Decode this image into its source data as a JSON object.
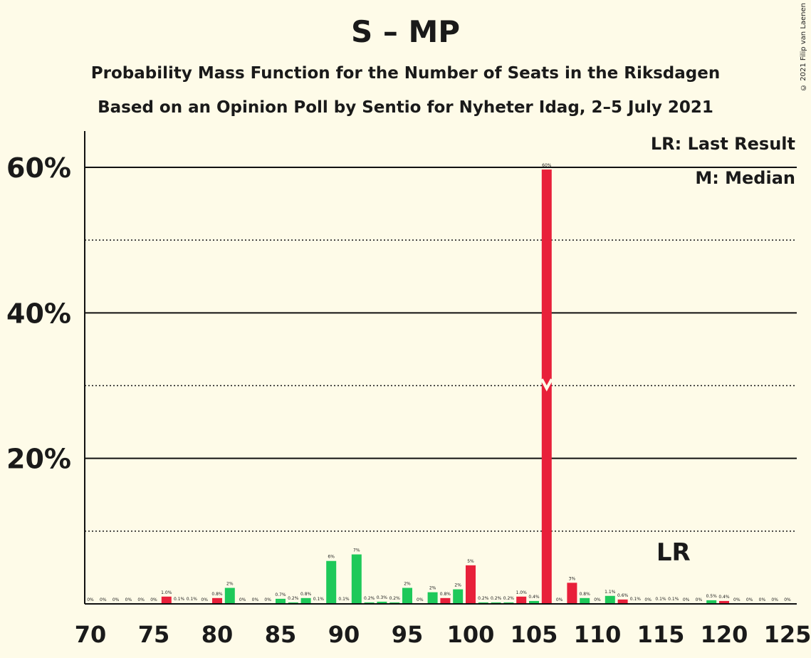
{
  "title": "S – MP",
  "subtitle1": "Probability Mass Function for the Number of Seats in the Riksdagen",
  "subtitle2": "Based on an Opinion Poll by Sentio for Nyheter Idag, 2–5 July 2021",
  "copyright": "© 2021 Filip van Laenen",
  "chart_data": {
    "type": "bar",
    "legend": [
      "LR: Last Result",
      "M: Median"
    ],
    "last_result_label": "LR",
    "last_result_seat": 116,
    "median_seat": 106,
    "ylim": [
      0,
      65
    ],
    "yticks": [
      {
        "value": 20,
        "label": "20%"
      },
      {
        "value": 40,
        "label": "40%"
      },
      {
        "value": 60,
        "label": "60%"
      }
    ],
    "dotted_gridlines": [
      10,
      30,
      50
    ],
    "xticks": [
      70,
      75,
      80,
      85,
      90,
      95,
      100,
      105,
      110,
      115,
      120,
      125
    ],
    "xlim": [
      70,
      125
    ],
    "colors": {
      "green": "#1ec95a",
      "red": "#e8203a",
      "background": "#fefbe8"
    },
    "bars": [
      {
        "seat": 70,
        "value": 0,
        "label": "0%",
        "color": "green"
      },
      {
        "seat": 71,
        "value": 0,
        "label": "0%",
        "color": "green"
      },
      {
        "seat": 72,
        "value": 0,
        "label": "0%",
        "color": "green"
      },
      {
        "seat": 73,
        "value": 0,
        "label": "0%",
        "color": "green"
      },
      {
        "seat": 74,
        "value": 0,
        "label": "0%",
        "color": "green"
      },
      {
        "seat": 75,
        "value": 0,
        "label": "0%",
        "color": "green"
      },
      {
        "seat": 76,
        "value": 1.0,
        "label": "1.0%",
        "color": "red"
      },
      {
        "seat": 77,
        "value": 0.1,
        "label": "0.1%",
        "color": "green"
      },
      {
        "seat": 78,
        "value": 0.1,
        "label": "0.1%",
        "color": "green"
      },
      {
        "seat": 79,
        "value": 0,
        "label": "0%",
        "color": "green"
      },
      {
        "seat": 80,
        "value": 0.8,
        "label": "0.8%",
        "color": "red"
      },
      {
        "seat": 81,
        "value": 2.2,
        "label": "2%",
        "color": "green"
      },
      {
        "seat": 82,
        "value": 0,
        "label": "0%",
        "color": "green"
      },
      {
        "seat": 83,
        "value": 0,
        "label": "0%",
        "color": "green"
      },
      {
        "seat": 84,
        "value": 0,
        "label": "0%",
        "color": "green"
      },
      {
        "seat": 85,
        "value": 0.7,
        "label": "0.7%",
        "color": "green"
      },
      {
        "seat": 86,
        "value": 0.2,
        "label": "0.2%",
        "color": "green"
      },
      {
        "seat": 87,
        "value": 0.8,
        "label": "0.8%",
        "color": "green"
      },
      {
        "seat": 88,
        "value": 0.1,
        "label": "0.1%",
        "color": "green"
      },
      {
        "seat": 89,
        "value": 5.9,
        "label": "6%",
        "color": "green"
      },
      {
        "seat": 90,
        "value": 0.1,
        "label": "0.1%",
        "color": "green"
      },
      {
        "seat": 91,
        "value": 6.8,
        "label": "7%",
        "color": "green"
      },
      {
        "seat": 92,
        "value": 0.2,
        "label": "0.2%",
        "color": "green"
      },
      {
        "seat": 93,
        "value": 0.3,
        "label": "0.3%",
        "color": "green"
      },
      {
        "seat": 94,
        "value": 0.2,
        "label": "0.2%",
        "color": "green"
      },
      {
        "seat": 95,
        "value": 2.2,
        "label": "2%",
        "color": "green"
      },
      {
        "seat": 96,
        "value": 0,
        "label": "0%",
        "color": "green"
      },
      {
        "seat": 97,
        "value": 1.6,
        "label": "2%",
        "color": "green"
      },
      {
        "seat": 98,
        "value": 0.8,
        "label": "0.8%",
        "color": "red"
      },
      {
        "seat": 99,
        "value": 2.0,
        "label": "2%",
        "color": "green"
      },
      {
        "seat": 100,
        "value": 5.3,
        "label": "5%",
        "color": "red"
      },
      {
        "seat": 101,
        "value": 0.2,
        "label": "0.2%",
        "color": "green"
      },
      {
        "seat": 102,
        "value": 0.2,
        "label": "0.2%",
        "color": "green"
      },
      {
        "seat": 103,
        "value": 0.2,
        "label": "0.2%",
        "color": "green"
      },
      {
        "seat": 104,
        "value": 1.0,
        "label": "1.0%",
        "color": "red"
      },
      {
        "seat": 105,
        "value": 0.4,
        "label": "0.4%",
        "color": "green"
      },
      {
        "seat": 106,
        "value": 59.7,
        "label": "60%",
        "color": "red"
      },
      {
        "seat": 107,
        "value": 0,
        "label": "0%",
        "color": "green"
      },
      {
        "seat": 108,
        "value": 2.9,
        "label": "3%",
        "color": "red"
      },
      {
        "seat": 109,
        "value": 0.8,
        "label": "0.8%",
        "color": "green"
      },
      {
        "seat": 110,
        "value": 0,
        "label": "0%",
        "color": "green"
      },
      {
        "seat": 111,
        "value": 1.1,
        "label": "1.1%",
        "color": "green"
      },
      {
        "seat": 112,
        "value": 0.6,
        "label": "0.6%",
        "color": "red"
      },
      {
        "seat": 113,
        "value": 0.1,
        "label": "0.1%",
        "color": "green"
      },
      {
        "seat": 114,
        "value": 0,
        "label": "0%",
        "color": "green"
      },
      {
        "seat": 115,
        "value": 0.1,
        "label": "0.1%",
        "color": "green"
      },
      {
        "seat": 116,
        "value": 0.1,
        "label": "0.1%",
        "color": "green"
      },
      {
        "seat": 117,
        "value": 0,
        "label": "0%",
        "color": "green"
      },
      {
        "seat": 118,
        "value": 0,
        "label": "0%",
        "color": "green"
      },
      {
        "seat": 119,
        "value": 0.5,
        "label": "0.5%",
        "color": "green"
      },
      {
        "seat": 120,
        "value": 0.4,
        "label": "0.4%",
        "color": "red"
      },
      {
        "seat": 121,
        "value": 0,
        "label": "0%",
        "color": "green"
      },
      {
        "seat": 122,
        "value": 0,
        "label": "0%",
        "color": "green"
      },
      {
        "seat": 123,
        "value": 0,
        "label": "0%",
        "color": "green"
      },
      {
        "seat": 124,
        "value": 0,
        "label": "0%",
        "color": "green"
      },
      {
        "seat": 125,
        "value": 0,
        "label": "0%",
        "color": "green"
      }
    ]
  }
}
